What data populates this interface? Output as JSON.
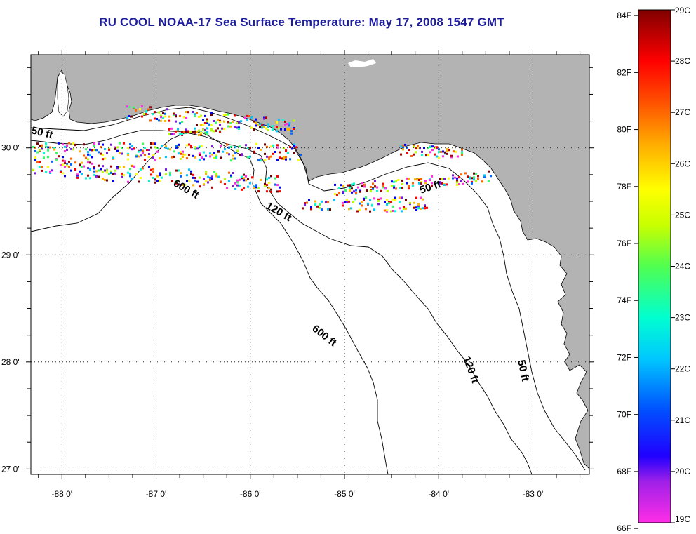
{
  "title": "RU COOL  NOAA-17  Sea Surface Temperature:  May 17, 2008 1547 GMT",
  "map": {
    "lon_ticks": [
      "-88 0'",
      "-87 0'",
      "-86 0'",
      "-85 0'",
      "-84 0'",
      "-83 0'"
    ],
    "lat_ticks": [
      "30 0'",
      "29 0'",
      "28 0'",
      "27 0'"
    ],
    "lon_range": [
      -88.33,
      -82.4
    ],
    "lat_range": [
      26.95,
      30.87
    ],
    "grid": "dotted",
    "land_color": "#b3b3b3",
    "water_color": "#ffffff"
  },
  "contours": {
    "labels": [
      "50 ft",
      "600 ft",
      "120 ft",
      "50 ft",
      "600 ft",
      "120 ft",
      "50 ft"
    ]
  },
  "colorbar": {
    "fahrenheit_labels": [
      "84F",
      "82F",
      "80F",
      "78F",
      "76F",
      "74F",
      "72F",
      "70F",
      "68F",
      "66F"
    ],
    "celsius_labels": [
      "29C",
      "28C",
      "27C",
      "26C",
      "25C",
      "24C",
      "23C",
      "22C",
      "21C",
      "20C",
      "19C"
    ],
    "range_c": [
      19,
      29
    ],
    "colors": [
      "#ff2de6",
      "#7a18e0",
      "#0000ff",
      "#0066ff",
      "#00c8ff",
      "#00ffd0",
      "#33ff66",
      "#b4ff00",
      "#ffff00",
      "#ffb400",
      "#ff6400",
      "#ff0000",
      "#b00000",
      "#700000"
    ]
  }
}
